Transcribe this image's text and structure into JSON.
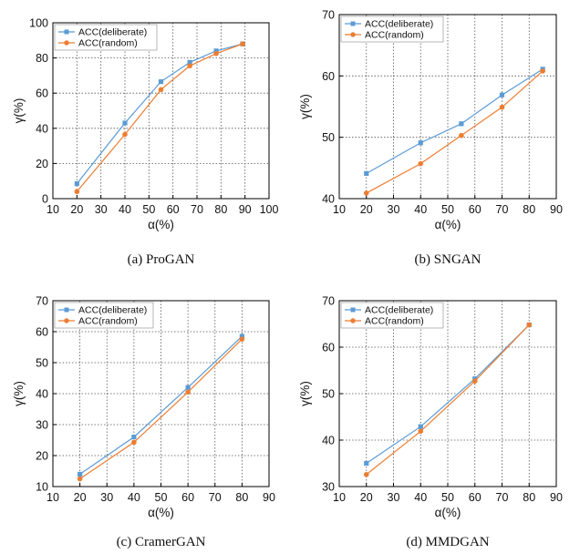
{
  "colors": {
    "deliberate": "#5b9bd5",
    "random": "#ed7d31",
    "grid": "#555555",
    "axis": "#000000"
  },
  "chart_data": [
    {
      "type": "line",
      "caption": "(a)  ProGAN",
      "xlabel": "α(%)",
      "ylabel": "γ(%)",
      "xlim": [
        10,
        100
      ],
      "ylim": [
        0,
        100
      ],
      "xticks": [
        10,
        20,
        30,
        40,
        50,
        60,
        70,
        80,
        90,
        100
      ],
      "yticks": [
        0,
        20,
        40,
        60,
        80,
        100
      ],
      "grid": true,
      "legend_position": "top-left",
      "series": [
        {
          "name": "ACC(deliberate)",
          "marker": "square",
          "x": [
            20,
            40,
            55,
            67,
            78,
            89
          ],
          "y": [
            8.5,
            43,
            66.5,
            77.5,
            84,
            88
          ]
        },
        {
          "name": "ACC(random)",
          "marker": "circle",
          "x": [
            20,
            40,
            55,
            67,
            78,
            89
          ],
          "y": [
            4,
            36.5,
            62,
            75.5,
            82.5,
            88
          ]
        }
      ]
    },
    {
      "type": "line",
      "caption": "(b)  SNGAN",
      "xlabel": "α(%)",
      "ylabel": "γ(%)",
      "xlim": [
        10,
        90
      ],
      "ylim": [
        40,
        70
      ],
      "xticks": [
        10,
        20,
        30,
        40,
        50,
        60,
        70,
        80,
        90
      ],
      "yticks": [
        40,
        50,
        60,
        70
      ],
      "grid": true,
      "legend_position": "top-left",
      "series": [
        {
          "name": "ACC(deliberate)",
          "marker": "square",
          "x": [
            20,
            40,
            55,
            70,
            85
          ],
          "y": [
            44.1,
            49.1,
            52.2,
            56.9,
            61.1
          ]
        },
        {
          "name": "ACC(random)",
          "marker": "circle",
          "x": [
            20,
            40,
            55,
            70,
            85
          ],
          "y": [
            40.9,
            45.7,
            50.3,
            54.9,
            60.8
          ]
        }
      ]
    },
    {
      "type": "line",
      "caption": "(c)  CramerGAN",
      "xlabel": "α(%)",
      "ylabel": "γ(%)",
      "xlim": [
        10,
        90
      ],
      "ylim": [
        10,
        70
      ],
      "xticks": [
        10,
        20,
        30,
        40,
        50,
        60,
        70,
        80,
        90
      ],
      "yticks": [
        10,
        20,
        30,
        40,
        50,
        60,
        70
      ],
      "grid": true,
      "legend_position": "top-left",
      "series": [
        {
          "name": "ACC(deliberate)",
          "marker": "square",
          "x": [
            20,
            40,
            60,
            80
          ],
          "y": [
            14,
            26,
            42,
            58.5
          ]
        },
        {
          "name": "ACC(random)",
          "marker": "circle",
          "x": [
            20,
            40,
            60,
            80
          ],
          "y": [
            12.5,
            24.3,
            40.5,
            57.6
          ]
        }
      ]
    },
    {
      "type": "line",
      "caption": "(d)  MMDGAN",
      "xlabel": "α(%)",
      "ylabel": "γ(%)",
      "xlim": [
        10,
        90
      ],
      "ylim": [
        30,
        70
      ],
      "xticks": [
        10,
        20,
        30,
        40,
        50,
        60,
        70,
        80,
        90
      ],
      "yticks": [
        30,
        40,
        50,
        60,
        70
      ],
      "grid": true,
      "legend_position": "top-left",
      "series": [
        {
          "name": "ACC(deliberate)",
          "marker": "square",
          "x": [
            20,
            40,
            60,
            80
          ],
          "y": [
            35,
            42.9,
            53.2,
            64.8
          ]
        },
        {
          "name": "ACC(random)",
          "marker": "circle",
          "x": [
            20,
            40,
            60,
            80
          ],
          "y": [
            32.6,
            41.9,
            52.7,
            64.8
          ]
        }
      ]
    }
  ]
}
